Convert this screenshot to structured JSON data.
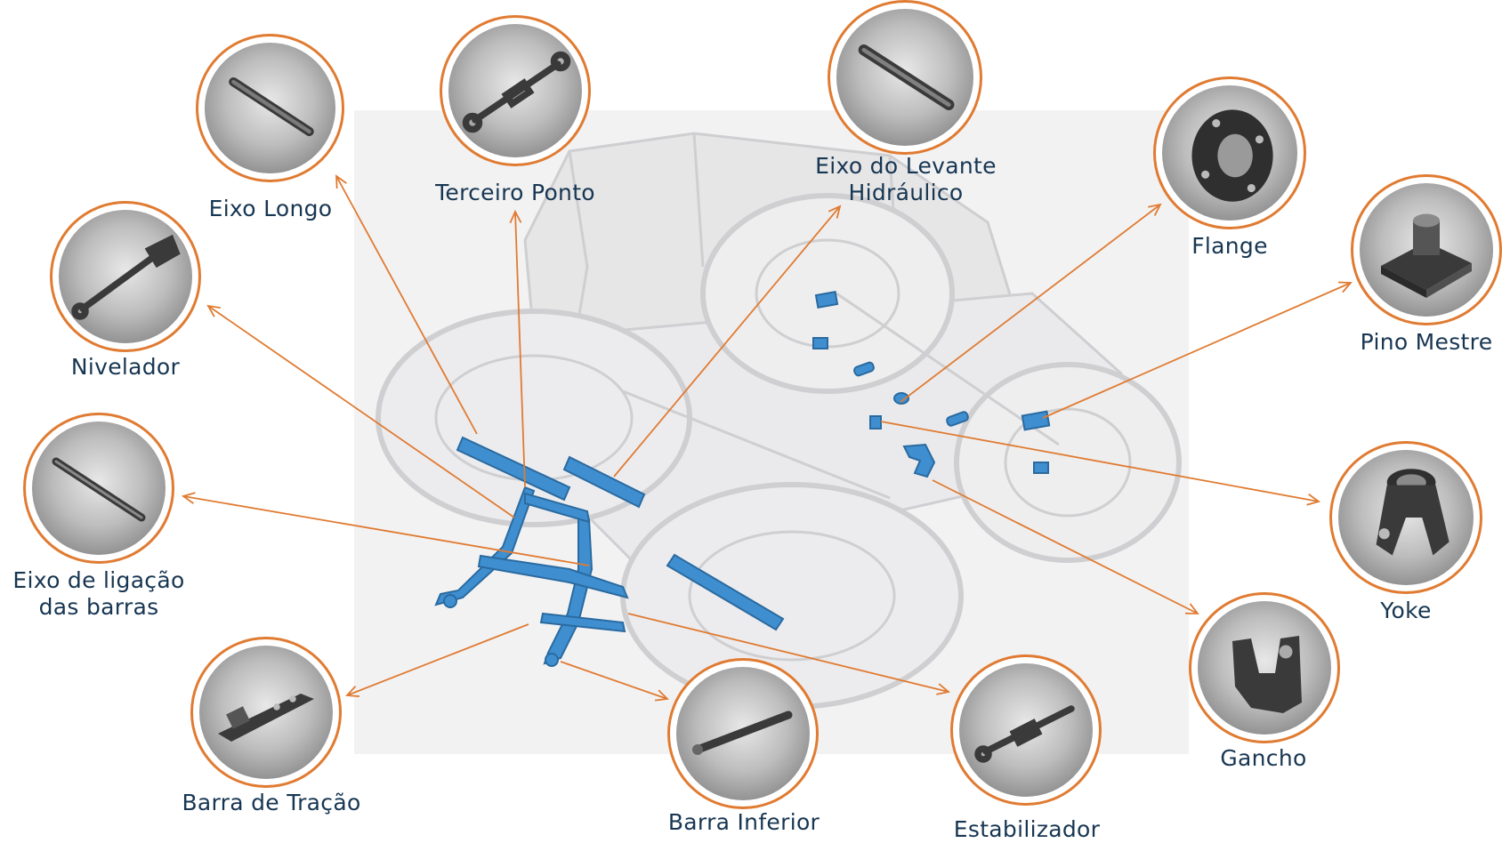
{
  "accent_color": "#e07b32",
  "label_color": "#173652",
  "part_color": "#3f8fd0",
  "parts": [
    {
      "id": "eixo-longo",
      "label": "Eixo Longo",
      "icon": "long-shaft-icon"
    },
    {
      "id": "terceiro-ponto",
      "label": "Terceiro Ponto",
      "icon": "top-link-icon"
    },
    {
      "id": "eixo-levante",
      "label": "Eixo do Levante\nHidráulico",
      "icon": "lift-shaft-icon"
    },
    {
      "id": "flange",
      "label": "Flange",
      "icon": "flange-icon"
    },
    {
      "id": "pino-mestre",
      "label": "Pino Mestre",
      "icon": "king-pin-icon"
    },
    {
      "id": "nivelador",
      "label": "Nivelador",
      "icon": "leveling-rod-icon"
    },
    {
      "id": "eixo-ligacao",
      "label": "Eixo de ligação\ndas barras",
      "icon": "link-shaft-icon"
    },
    {
      "id": "yoke",
      "label": "Yoke",
      "icon": "yoke-icon"
    },
    {
      "id": "gancho",
      "label": "Gancho",
      "icon": "hook-icon"
    },
    {
      "id": "barra-tracao",
      "label": "Barra de Tração",
      "icon": "drawbar-icon"
    },
    {
      "id": "barra-inferior",
      "label": "Barra Inferior",
      "icon": "lower-link-icon"
    },
    {
      "id": "estabilizador",
      "label": "Estabilizador",
      "icon": "stabilizer-icon"
    }
  ]
}
